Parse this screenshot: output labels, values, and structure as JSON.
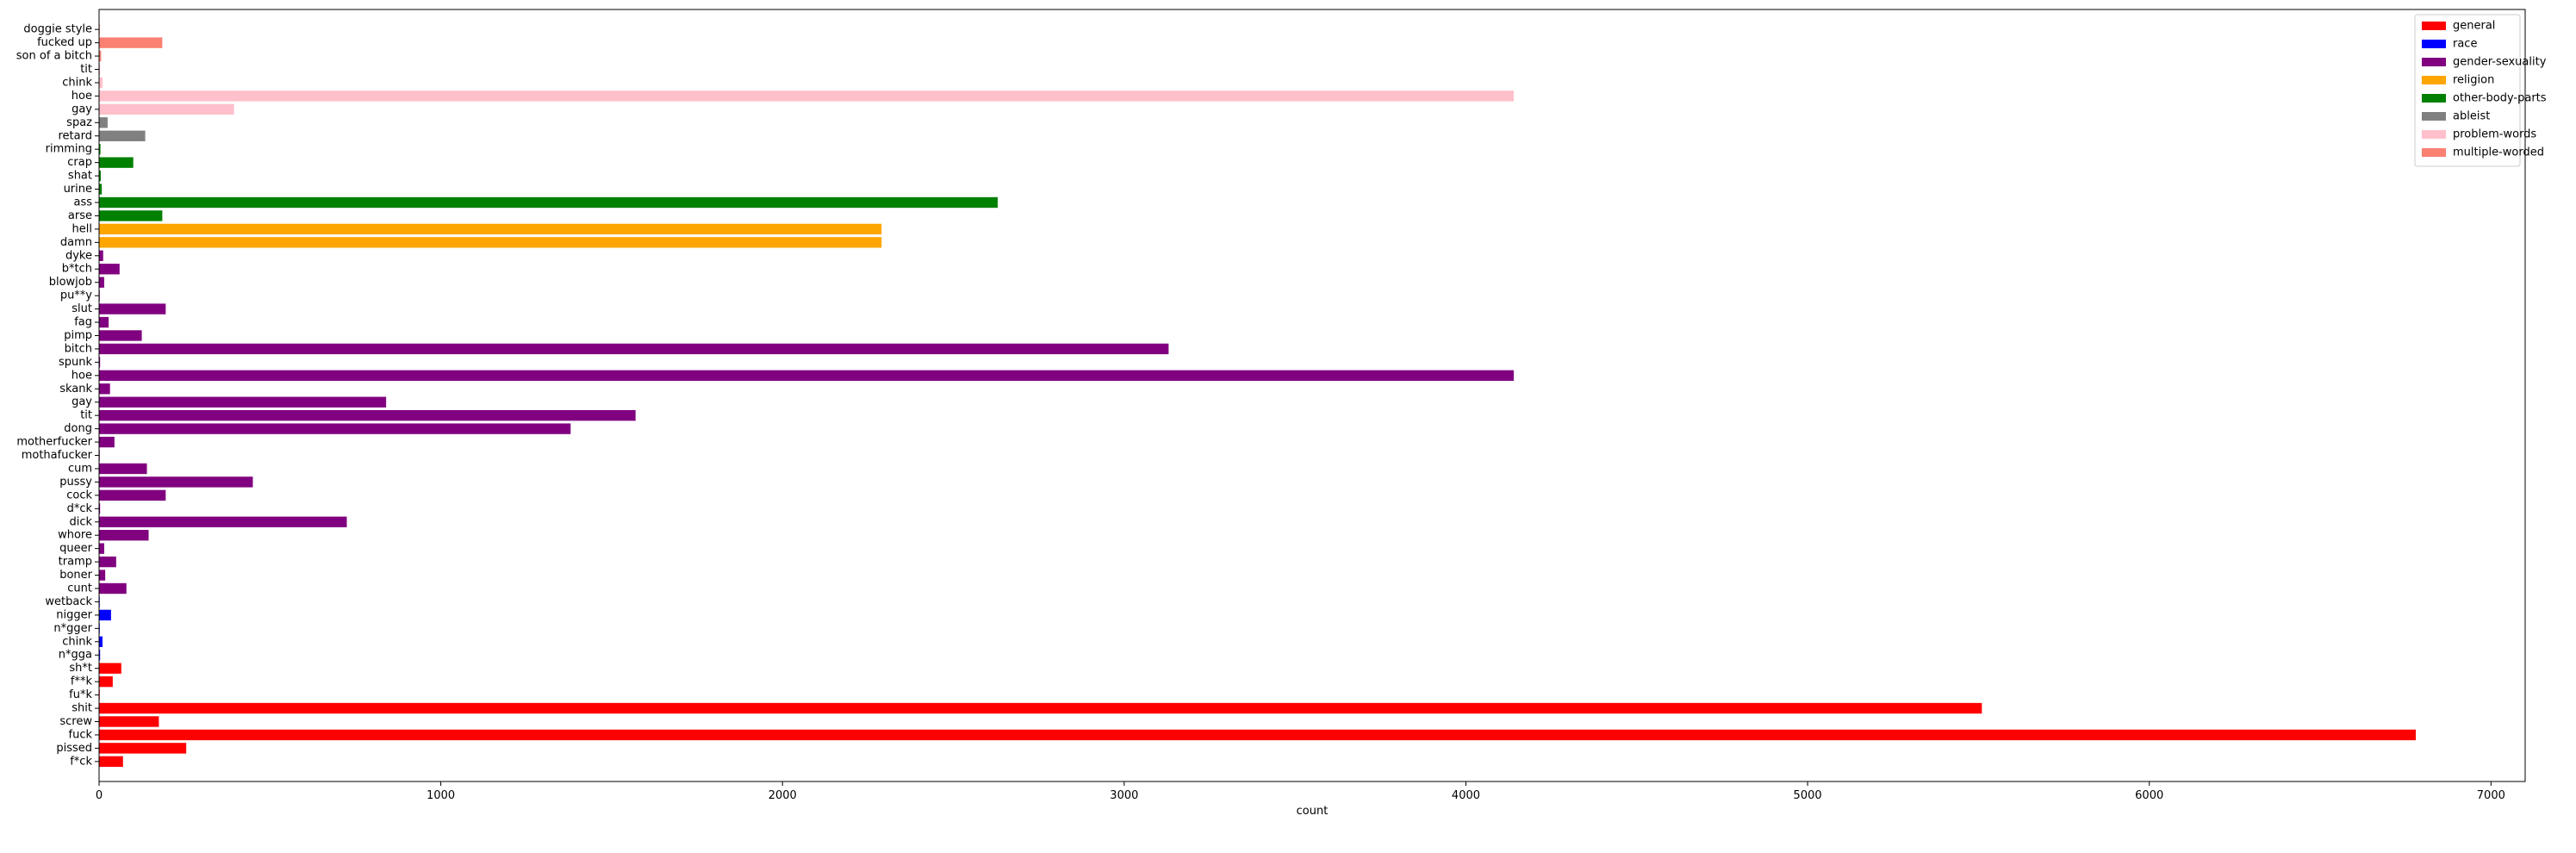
{
  "chart_data": {
    "type": "bar",
    "orientation": "horizontal",
    "title": "",
    "xlabel": "count",
    "ylabel": "",
    "xlim": [
      0,
      7100
    ],
    "xticks": [
      0,
      1000,
      2000,
      3000,
      4000,
      5000,
      6000,
      7000
    ],
    "grid": false,
    "legend_placement": "top-right",
    "series": [
      {
        "name": "general",
        "color": "#ff0000"
      },
      {
        "name": "race",
        "color": "#0000ff"
      },
      {
        "name": "gender-sexuality",
        "color": "#800080"
      },
      {
        "name": "religion",
        "color": "#ffa500"
      },
      {
        "name": "other-body-parts",
        "color": "#008000"
      },
      {
        "name": "ableist",
        "color": "#808080"
      },
      {
        "name": "problem-words",
        "color": "#ffc0cb"
      },
      {
        "name": "multiple-worded",
        "color": "#fa8072"
      }
    ],
    "bars": [
      {
        "label": "f*ck",
        "value": 70,
        "series": "general"
      },
      {
        "label": "pissed",
        "value": 255,
        "series": "general"
      },
      {
        "label": "fuck",
        "value": 6780,
        "series": "general"
      },
      {
        "label": "screw",
        "value": 175,
        "series": "general"
      },
      {
        "label": "shit",
        "value": 5510,
        "series": "general"
      },
      {
        "label": "fu*k",
        "value": 2,
        "series": "general"
      },
      {
        "label": "f**k",
        "value": 40,
        "series": "general"
      },
      {
        "label": "sh*t",
        "value": 65,
        "series": "general"
      },
      {
        "label": "n*gga",
        "value": 3,
        "series": "race"
      },
      {
        "label": "chink",
        "value": 10,
        "series": "race"
      },
      {
        "label": "n*gger",
        "value": 2,
        "series": "race"
      },
      {
        "label": "nigger",
        "value": 35,
        "series": "race"
      },
      {
        "label": "wetback",
        "value": 2,
        "series": "race"
      },
      {
        "label": "cunt",
        "value": 80,
        "series": "gender-sexuality"
      },
      {
        "label": "boner",
        "value": 18,
        "series": "gender-sexuality"
      },
      {
        "label": "tramp",
        "value": 50,
        "series": "gender-sexuality"
      },
      {
        "label": "queer",
        "value": 15,
        "series": "gender-sexuality"
      },
      {
        "label": "whore",
        "value": 145,
        "series": "gender-sexuality"
      },
      {
        "label": "dick",
        "value": 725,
        "series": "gender-sexuality"
      },
      {
        "label": "d*ck",
        "value": 3,
        "series": "gender-sexuality"
      },
      {
        "label": "cock",
        "value": 195,
        "series": "gender-sexuality"
      },
      {
        "label": "pussy",
        "value": 450,
        "series": "gender-sexuality"
      },
      {
        "label": "cum",
        "value": 140,
        "series": "gender-sexuality"
      },
      {
        "label": "mothafucker",
        "value": 2,
        "series": "gender-sexuality"
      },
      {
        "label": "motherfucker",
        "value": 45,
        "series": "gender-sexuality"
      },
      {
        "label": "dong",
        "value": 1380,
        "series": "gender-sexuality"
      },
      {
        "label": "tit",
        "value": 1570,
        "series": "gender-sexuality"
      },
      {
        "label": "gay",
        "value": 840,
        "series": "gender-sexuality"
      },
      {
        "label": "skank",
        "value": 32,
        "series": "gender-sexuality"
      },
      {
        "label": "hoe",
        "value": 4140,
        "series": "gender-sexuality"
      },
      {
        "label": "spunk",
        "value": 3,
        "series": "gender-sexuality"
      },
      {
        "label": "bitch",
        "value": 3130,
        "series": "gender-sexuality"
      },
      {
        "label": "pimp",
        "value": 125,
        "series": "gender-sexuality"
      },
      {
        "label": "fag",
        "value": 28,
        "series": "gender-sexuality"
      },
      {
        "label": "slut",
        "value": 195,
        "series": "gender-sexuality"
      },
      {
        "label": "pu**y",
        "value": 2,
        "series": "gender-sexuality"
      },
      {
        "label": "blowjob",
        "value": 15,
        "series": "gender-sexuality"
      },
      {
        "label": "b*tch",
        "value": 60,
        "series": "gender-sexuality"
      },
      {
        "label": "dyke",
        "value": 12,
        "series": "gender-sexuality"
      },
      {
        "label": "damn",
        "value": 2290,
        "series": "religion"
      },
      {
        "label": "hell",
        "value": 2290,
        "series": "religion"
      },
      {
        "label": "arse",
        "value": 185,
        "series": "other-body-parts"
      },
      {
        "label": "ass",
        "value": 2630,
        "series": "other-body-parts"
      },
      {
        "label": "urine",
        "value": 8,
        "series": "other-body-parts"
      },
      {
        "label": "shat",
        "value": 5,
        "series": "other-body-parts"
      },
      {
        "label": "crap",
        "value": 100,
        "series": "other-body-parts"
      },
      {
        "label": "rimming",
        "value": 4,
        "series": "other-body-parts"
      },
      {
        "label": "retard",
        "value": 135,
        "series": "ableist"
      },
      {
        "label": "spaz",
        "value": 25,
        "series": "ableist"
      },
      {
        "label": "gay",
        "value": 395,
        "series": "problem-words"
      },
      {
        "label": "hoe",
        "value": 4140,
        "series": "problem-words"
      },
      {
        "label": "chink",
        "value": 10,
        "series": "problem-words"
      },
      {
        "label": "tit",
        "value": 3,
        "series": "problem-words"
      },
      {
        "label": "son of a bitch",
        "value": 6,
        "series": "multiple-worded"
      },
      {
        "label": "fucked up",
        "value": 185,
        "series": "multiple-worded"
      },
      {
        "label": "doggie style",
        "value": 2,
        "series": "multiple-worded"
      }
    ]
  }
}
